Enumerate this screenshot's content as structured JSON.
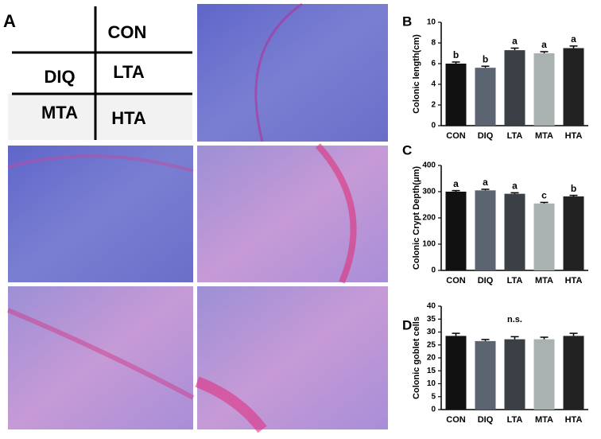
{
  "panel_a": {
    "label": "A",
    "groups": [
      "CON",
      "DIQ",
      "LTA",
      "MTA",
      "HTA"
    ]
  },
  "chart_data": [
    {
      "type": "bar",
      "panel": "B",
      "y_label": "Colonic length(cm)",
      "categories": [
        "CON",
        "DIQ",
        "LTA",
        "MTA",
        "HTA"
      ],
      "values": [
        6.0,
        5.6,
        7.3,
        7.0,
        7.5
      ],
      "errors": [
        0.15,
        0.15,
        0.2,
        0.15,
        0.2
      ],
      "bar_labels": [
        "b",
        "b",
        "a",
        "a",
        "a"
      ],
      "colors": [
        "#111111",
        "#5b6470",
        "#3a4045",
        "#a9b1b1",
        "#222222"
      ],
      "ylim": [
        0,
        10
      ],
      "yticks": [
        0,
        2,
        4,
        6,
        8,
        10
      ]
    },
    {
      "type": "bar",
      "panel": "C",
      "y_label": "Colonic Crypt Depth(μm)",
      "categories": [
        "CON",
        "DIQ",
        "LTA",
        "MTA",
        "HTA"
      ],
      "values": [
        300,
        305,
        292,
        255,
        282
      ],
      "errors": [
        4,
        4,
        4,
        4,
        4
      ],
      "bar_labels": [
        "a",
        "a",
        "a",
        "c",
        "b"
      ],
      "colors": [
        "#111111",
        "#5b6470",
        "#3a4045",
        "#a9b1b1",
        "#222222"
      ],
      "ylim": [
        0,
        400
      ],
      "yticks": [
        0,
        100,
        200,
        300,
        400
      ]
    },
    {
      "type": "bar",
      "panel": "D",
      "y_label": "Colonic goblet cells",
      "annotation": "n.s.",
      "categories": [
        "CON",
        "DIQ",
        "LTA",
        "MTA",
        "HTA"
      ],
      "values": [
        28.5,
        26.5,
        27.2,
        27.2,
        28.5
      ],
      "errors": [
        1,
        0.6,
        1,
        0.8,
        1
      ],
      "colors": [
        "#111111",
        "#5b6470",
        "#3a4045",
        "#a9b1b1",
        "#222222"
      ],
      "ylim": [
        0,
        40
      ],
      "yticks": [
        0,
        5,
        10,
        15,
        20,
        25,
        30,
        35,
        40
      ]
    }
  ]
}
